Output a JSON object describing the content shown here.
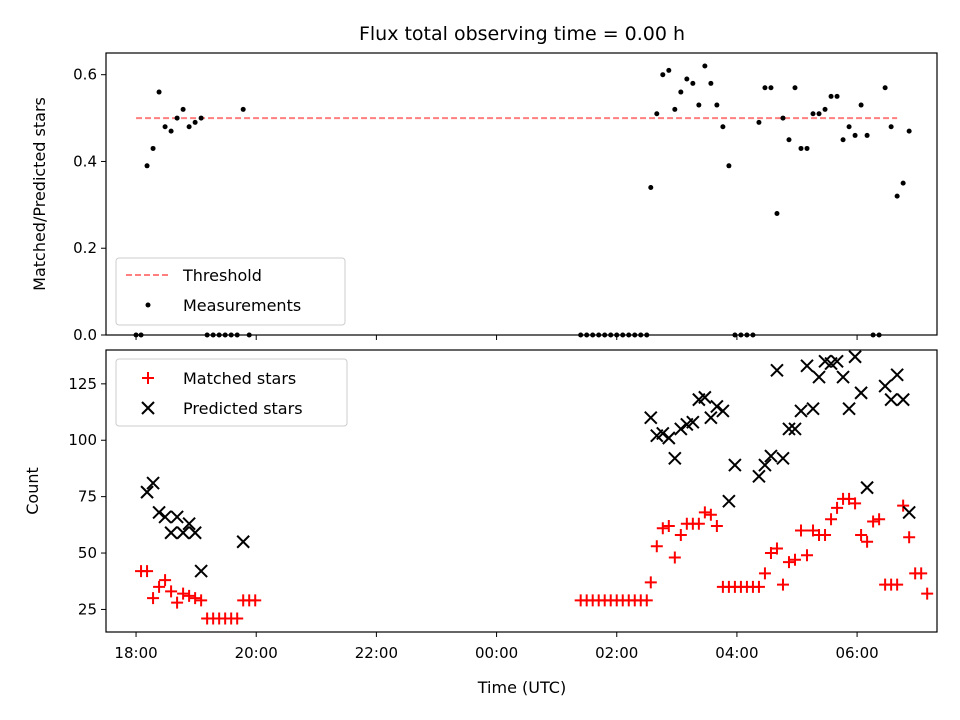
{
  "chart_data": [
    {
      "type": "scatter",
      "title": "Flux total observing time = 0.00 h",
      "xlabel": "",
      "ylabel": "Matched/Predicted stars",
      "ylim": [
        0,
        0.65
      ],
      "yticks": [
        "0.0",
        "0.2",
        "0.4",
        "0.6"
      ],
      "grid": false,
      "legend": "lower-left",
      "threshold": {
        "name": "Threshold",
        "value": 0.5,
        "x_start": "18:00",
        "x_end": "06:40",
        "color": "#ff7f7f"
      },
      "series": [
        {
          "name": "Measurements",
          "color": "#000000",
          "points": [
            [
              "18:00",
              0
            ],
            [
              "18:05",
              0
            ],
            [
              "18:11",
              0.39
            ],
            [
              "18:17",
              0.43
            ],
            [
              "18:23",
              0.56
            ],
            [
              "18:29",
              0.48
            ],
            [
              "18:35",
              0.47
            ],
            [
              "18:41",
              0.5
            ],
            [
              "18:47",
              0.52
            ],
            [
              "18:53",
              0.48
            ],
            [
              "18:59",
              0.49
            ],
            [
              "19:05",
              0.5
            ],
            [
              "19:11",
              0
            ],
            [
              "19:17",
              0
            ],
            [
              "19:23",
              0
            ],
            [
              "19:29",
              0
            ],
            [
              "19:35",
              0
            ],
            [
              "19:41",
              0
            ],
            [
              "19:47",
              0.52
            ],
            [
              "19:53",
              0
            ],
            [
              "01:24",
              0
            ],
            [
              "01:30",
              0
            ],
            [
              "01:36",
              0
            ],
            [
              "01:42",
              0
            ],
            [
              "01:48",
              0
            ],
            [
              "01:54",
              0
            ],
            [
              "02:00",
              0
            ],
            [
              "02:06",
              0
            ],
            [
              "02:12",
              0
            ],
            [
              "02:18",
              0
            ],
            [
              "02:24",
              0
            ],
            [
              "02:30",
              0
            ],
            [
              "02:34",
              0.34
            ],
            [
              "02:40",
              0.51
            ],
            [
              "02:46",
              0.6
            ],
            [
              "02:52",
              0.61
            ],
            [
              "02:58",
              0.52
            ],
            [
              "03:04",
              0.56
            ],
            [
              "03:10",
              0.59
            ],
            [
              "03:16",
              0.58
            ],
            [
              "03:22",
              0.53
            ],
            [
              "03:28",
              0.62
            ],
            [
              "03:34",
              0.58
            ],
            [
              "03:40",
              0.53
            ],
            [
              "03:46",
              0.48
            ],
            [
              "03:52",
              0.39
            ],
            [
              "03:58",
              0
            ],
            [
              "04:04",
              0
            ],
            [
              "04:10",
              0
            ],
            [
              "04:16",
              0
            ],
            [
              "04:22",
              0.49
            ],
            [
              "04:28",
              0.57
            ],
            [
              "04:34",
              0.57
            ],
            [
              "04:40",
              0.28
            ],
            [
              "04:46",
              0.5
            ],
            [
              "04:52",
              0.45
            ],
            [
              "04:58",
              0.57
            ],
            [
              "05:04",
              0.43
            ],
            [
              "05:10",
              0.43
            ],
            [
              "05:16",
              0.51
            ],
            [
              "05:22",
              0.51
            ],
            [
              "05:28",
              0.52
            ],
            [
              "05:34",
              0.55
            ],
            [
              "05:40",
              0.55
            ],
            [
              "05:46",
              0.45
            ],
            [
              "05:52",
              0.48
            ],
            [
              "05:58",
              0.46
            ],
            [
              "06:04",
              0.53
            ],
            [
              "06:10",
              0.46
            ],
            [
              "06:16",
              0
            ],
            [
              "06:22",
              0
            ],
            [
              "06:28",
              0.57
            ],
            [
              "06:34",
              0.48
            ],
            [
              "06:40",
              0.32
            ],
            [
              "06:46",
              0.35
            ],
            [
              "06:52",
              0.47
            ]
          ]
        }
      ]
    },
    {
      "type": "scatter",
      "title": "",
      "xlabel": "Time (UTC)",
      "ylabel": "Count",
      "ylim": [
        15,
        140
      ],
      "yticks": [
        "25",
        "50",
        "75",
        "100",
        "125"
      ],
      "xticks": [
        "18:00",
        "20:00",
        "22:00",
        "00:00",
        "02:00",
        "04:00",
        "06:00"
      ],
      "grid": false,
      "legend": "upper-left",
      "series": [
        {
          "name": "Matched stars",
          "color": "#ff0000",
          "marker": "plus",
          "points": [
            [
              "18:05",
              42
            ],
            [
              "18:11",
              42
            ],
            [
              "18:17",
              30
            ],
            [
              "18:23",
              35
            ],
            [
              "18:29",
              38
            ],
            [
              "18:35",
              33
            ],
            [
              "18:41",
              28
            ],
            [
              "18:47",
              32
            ],
            [
              "18:53",
              31
            ],
            [
              "18:59",
              30
            ],
            [
              "19:05",
              29
            ],
            [
              "19:11",
              21
            ],
            [
              "19:17",
              21
            ],
            [
              "19:23",
              21
            ],
            [
              "19:29",
              21
            ],
            [
              "19:35",
              21
            ],
            [
              "19:41",
              21
            ],
            [
              "19:47",
              29
            ],
            [
              "19:53",
              29
            ],
            [
              "19:59",
              29
            ],
            [
              "01:24",
              29
            ],
            [
              "01:30",
              29
            ],
            [
              "01:36",
              29
            ],
            [
              "01:42",
              29
            ],
            [
              "01:48",
              29
            ],
            [
              "01:54",
              29
            ],
            [
              "02:00",
              29
            ],
            [
              "02:06",
              29
            ],
            [
              "02:12",
              29
            ],
            [
              "02:18",
              29
            ],
            [
              "02:24",
              29
            ],
            [
              "02:30",
              29
            ],
            [
              "02:34",
              37
            ],
            [
              "02:40",
              53
            ],
            [
              "02:46",
              61
            ],
            [
              "02:52",
              62
            ],
            [
              "02:58",
              48
            ],
            [
              "03:04",
              58
            ],
            [
              "03:10",
              63
            ],
            [
              "03:16",
              63
            ],
            [
              "03:22",
              63
            ],
            [
              "03:28",
              68
            ],
            [
              "03:34",
              67
            ],
            [
              "03:40",
              62
            ],
            [
              "03:46",
              35
            ],
            [
              "03:52",
              35
            ],
            [
              "03:58",
              35
            ],
            [
              "04:04",
              35
            ],
            [
              "04:10",
              35
            ],
            [
              "04:16",
              35
            ],
            [
              "04:22",
              35
            ],
            [
              "04:28",
              41
            ],
            [
              "04:34",
              50
            ],
            [
              "04:40",
              52
            ],
            [
              "04:46",
              36
            ],
            [
              "04:52",
              46
            ],
            [
              "04:58",
              47
            ],
            [
              "05:04",
              60
            ],
            [
              "05:10",
              49
            ],
            [
              "05:16",
              60
            ],
            [
              "05:22",
              58
            ],
            [
              "05:28",
              58
            ],
            [
              "05:34",
              65
            ],
            [
              "05:40",
              70
            ],
            [
              "05:46",
              74
            ],
            [
              "05:52",
              74
            ],
            [
              "05:58",
              72
            ],
            [
              "06:04",
              58
            ],
            [
              "06:10",
              55
            ],
            [
              "06:16",
              64
            ],
            [
              "06:22",
              65
            ],
            [
              "06:28",
              36
            ],
            [
              "06:34",
              36
            ],
            [
              "06:40",
              36
            ],
            [
              "06:46",
              71
            ],
            [
              "06:52",
              57
            ],
            [
              "06:58",
              41
            ],
            [
              "07:04",
              41
            ],
            [
              "07:10",
              32
            ]
          ]
        },
        {
          "name": "Predicted stars",
          "color": "#000000",
          "marker": "x",
          "points": [
            [
              "18:11",
              77
            ],
            [
              "18:17",
              81
            ],
            [
              "18:23",
              68
            ],
            [
              "18:29",
              66
            ],
            [
              "18:35",
              59
            ],
            [
              "18:41",
              66
            ],
            [
              "18:47",
              59
            ],
            [
              "18:53",
              63
            ],
            [
              "18:59",
              59
            ],
            [
              "19:05",
              42
            ],
            [
              "19:47",
              55
            ],
            [
              "02:34",
              110
            ],
            [
              "02:40",
              102
            ],
            [
              "02:46",
              103
            ],
            [
              "02:52",
              101
            ],
            [
              "02:58",
              92
            ],
            [
              "03:04",
              105
            ],
            [
              "03:10",
              107
            ],
            [
              "03:16",
              108
            ],
            [
              "03:22",
              118
            ],
            [
              "03:28",
              119
            ],
            [
              "03:34",
              110
            ],
            [
              "03:40",
              115
            ],
            [
              "03:46",
              113
            ],
            [
              "03:52",
              73
            ],
            [
              "03:58",
              89
            ],
            [
              "04:22",
              84
            ],
            [
              "04:28",
              89
            ],
            [
              "04:34",
              93
            ],
            [
              "04:40",
              131
            ],
            [
              "04:46",
              92
            ],
            [
              "04:52",
              105
            ],
            [
              "04:58",
              105
            ],
            [
              "05:04",
              113
            ],
            [
              "05:10",
              133
            ],
            [
              "05:16",
              114
            ],
            [
              "05:22",
              128
            ],
            [
              "05:28",
              135
            ],
            [
              "05:34",
              134
            ],
            [
              "05:40",
              135
            ],
            [
              "05:46",
              128
            ],
            [
              "05:52",
              114
            ],
            [
              "05:58",
              137
            ],
            [
              "06:04",
              121
            ],
            [
              "06:10",
              79
            ],
            [
              "06:28",
              124
            ],
            [
              "06:34",
              118
            ],
            [
              "06:40",
              129
            ],
            [
              "06:46",
              118
            ],
            [
              "06:52",
              68
            ]
          ]
        }
      ]
    }
  ]
}
